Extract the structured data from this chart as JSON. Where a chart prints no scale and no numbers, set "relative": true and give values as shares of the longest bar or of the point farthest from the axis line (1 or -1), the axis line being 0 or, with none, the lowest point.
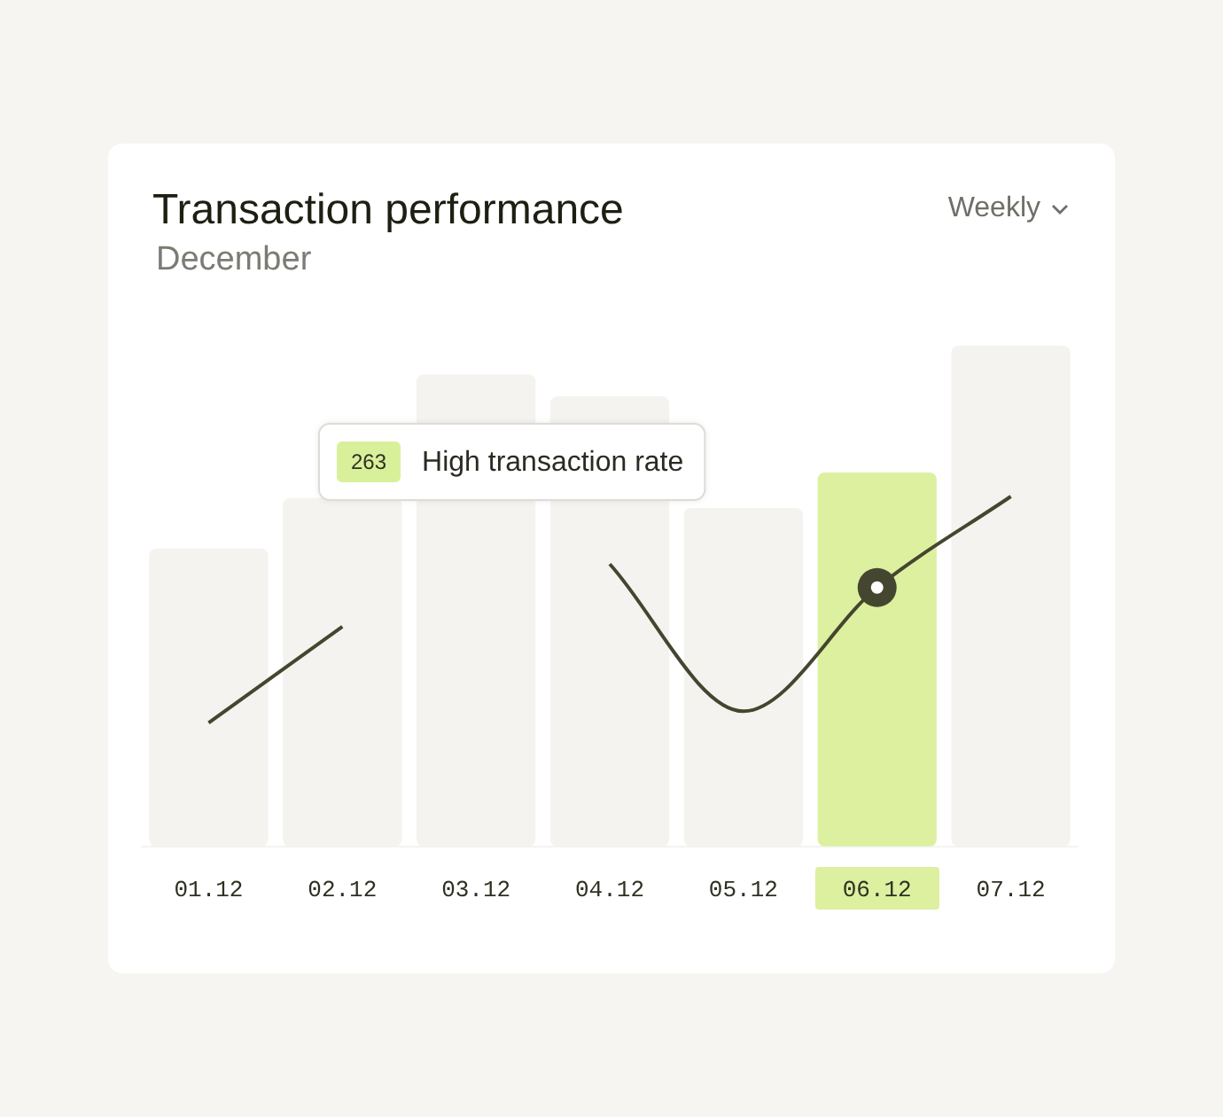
{
  "chart_data": {
    "type": "bar",
    "title": "Transaction performance",
    "subtitle": "December",
    "relative": true,
    "categories": [
      "01.12",
      "02.12",
      "03.12",
      "04.12",
      "05.12",
      "06.12",
      "07.12"
    ],
    "series": [
      {
        "colors": [
          "#f4f3ef",
          "#f4f3ef",
          "#f4f3ef",
          "#f4f3ef",
          "#f4f3ef",
          "#dcf0a0",
          "#f4f3ef"
        ],
        "values": [
          0.595,
          0.696,
          0.943,
          0.899,
          0.676,
          0.747,
          1
        ]
      },
      {
        "type": "line",
        "color": "#45462f",
        "values": [
          0.247,
          0.439,
          null,
          0.564,
          0.27,
          0.517,
          0.699
        ]
      }
    ],
    "annotations": [
      "Weekly",
      "263",
      "High transaction rate"
    ],
    "grid": false,
    "legend": false,
    "marker": "none",
    "line_style": "solid"
  }
}
